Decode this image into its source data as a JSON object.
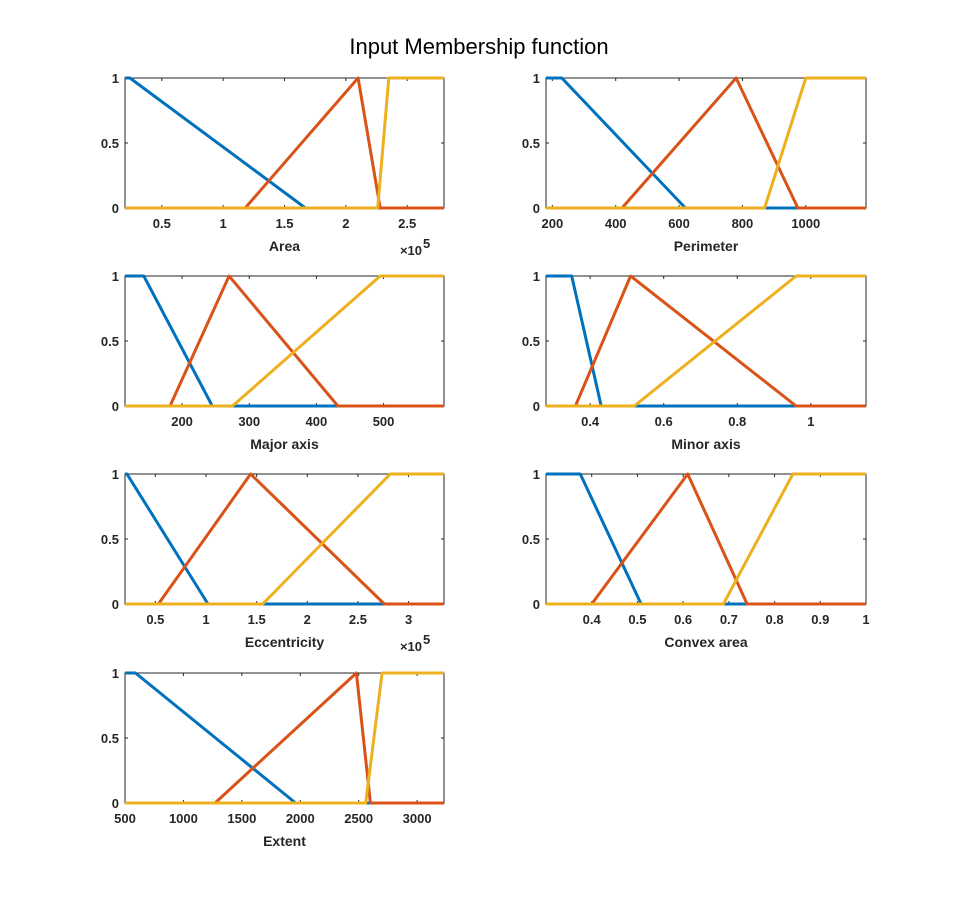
{
  "figure_title": "Input Membership function",
  "colors": {
    "mf1": "#0072BD",
    "mf2": "#D95319",
    "mf3": "#EDB120"
  },
  "chart_data": [
    {
      "type": "line",
      "xlabel": "Area",
      "multiplier": "×10",
      "multiplier_exp": "5",
      "xlim": [
        0.2,
        2.8
      ],
      "ylim": [
        0,
        1
      ],
      "xticks": [
        0.5,
        1,
        1.5,
        2,
        2.5
      ],
      "xtick_labels": [
        "0.5",
        "1",
        "1.5",
        "2",
        "2.5"
      ],
      "yticks": [
        0,
        0.5,
        1
      ],
      "ytick_labels": [
        "0",
        "0.5",
        "1"
      ],
      "series": [
        {
          "x": [
            0.2,
            0.24,
            1.67,
            2.8
          ],
          "y": [
            1,
            1,
            0,
            0
          ]
        },
        {
          "x": [
            0.2,
            1.18,
            2.1,
            2.28,
            2.8
          ],
          "y": [
            0,
            0,
            1,
            0,
            0
          ]
        },
        {
          "x": [
            0.2,
            2.26,
            2.35,
            2.8
          ],
          "y": [
            0,
            0,
            1,
            1
          ]
        }
      ]
    },
    {
      "type": "line",
      "xlabel": "Perimeter",
      "multiplier": "",
      "multiplier_exp": "",
      "xlim": [
        180,
        1190
      ],
      "ylim": [
        0,
        1
      ],
      "xticks": [
        200,
        400,
        600,
        800,
        1000
      ],
      "xtick_labels": [
        "200",
        "400",
        "600",
        "800",
        "1000"
      ],
      "yticks": [
        0,
        0.5,
        1
      ],
      "ytick_labels": [
        "0",
        "0.5",
        "1"
      ],
      "series": [
        {
          "x": [
            180,
            230,
            620,
            1190
          ],
          "y": [
            1,
            1,
            0,
            0
          ]
        },
        {
          "x": [
            180,
            420,
            780,
            975,
            1190
          ],
          "y": [
            0,
            0,
            1,
            0,
            0
          ]
        },
        {
          "x": [
            180,
            870,
            1000,
            1190
          ],
          "y": [
            0,
            0,
            1,
            1
          ]
        }
      ]
    },
    {
      "type": "line",
      "xlabel": "Major axis",
      "multiplier": "",
      "multiplier_exp": "",
      "xlim": [
        115,
        590
      ],
      "ylim": [
        0,
        1
      ],
      "xticks": [
        200,
        300,
        400,
        500
      ],
      "xtick_labels": [
        "200",
        "300",
        "400",
        "500"
      ],
      "yticks": [
        0,
        0.5,
        1
      ],
      "ytick_labels": [
        "0",
        "0.5",
        "1"
      ],
      "series": [
        {
          "x": [
            115,
            143,
            245,
            590
          ],
          "y": [
            1,
            1,
            0,
            0
          ]
        },
        {
          "x": [
            115,
            182,
            270,
            432,
            590
          ],
          "y": [
            0,
            0,
            1,
            0,
            0
          ]
        },
        {
          "x": [
            115,
            275,
            495,
            590
          ],
          "y": [
            0,
            0,
            1,
            1
          ]
        }
      ]
    },
    {
      "type": "line",
      "xlabel": "Minor axis",
      "multiplier": "",
      "multiplier_exp": "",
      "xlim": [
        0.28,
        1.15
      ],
      "ylim": [
        0,
        1
      ],
      "xticks": [
        0.4,
        0.6,
        0.8,
        1
      ],
      "xtick_labels": [
        "0.4",
        "0.6",
        "0.8",
        "1"
      ],
      "yticks": [
        0,
        0.5,
        1
      ],
      "ytick_labels": [
        "0",
        "0.5",
        "1"
      ],
      "series": [
        {
          "x": [
            0.28,
            0.35,
            0.43,
            1.15
          ],
          "y": [
            1,
            1,
            0,
            0
          ]
        },
        {
          "x": [
            0.28,
            0.36,
            0.51,
            0.96,
            1.15
          ],
          "y": [
            0,
            0,
            1,
            0,
            0
          ]
        },
        {
          "x": [
            0.28,
            0.52,
            0.96,
            1.15
          ],
          "y": [
            0,
            0,
            1,
            1
          ]
        }
      ]
    },
    {
      "type": "line",
      "xlabel": "Eccentricity",
      "multiplier": "×10",
      "multiplier_exp": "5",
      "xlim": [
        0.2,
        3.35
      ],
      "ylim": [
        0,
        1
      ],
      "xticks": [
        0.5,
        1,
        1.5,
        2,
        2.5,
        3
      ],
      "xtick_labels": [
        "0.5",
        "1",
        "1.5",
        "2",
        "2.5",
        "3"
      ],
      "yticks": [
        0,
        0.5,
        1
      ],
      "ytick_labels": [
        "0",
        "0.5",
        "1"
      ],
      "series": [
        {
          "x": [
            0.2,
            0.22,
            1.02,
            3.35
          ],
          "y": [
            1,
            1,
            0,
            0
          ]
        },
        {
          "x": [
            0.2,
            0.53,
            1.44,
            2.76,
            3.35
          ],
          "y": [
            0,
            0,
            1,
            0,
            0
          ]
        },
        {
          "x": [
            0.2,
            1.56,
            2.82,
            3.35
          ],
          "y": [
            0,
            0,
            1,
            1
          ]
        }
      ]
    },
    {
      "type": "line",
      "xlabel": "Convex area",
      "multiplier": "",
      "multiplier_exp": "",
      "xlim": [
        0.3,
        1.0
      ],
      "ylim": [
        0,
        1
      ],
      "xticks": [
        0.4,
        0.5,
        0.6,
        0.7,
        0.8,
        0.9,
        1
      ],
      "xtick_labels": [
        "0.4",
        "0.5",
        "0.6",
        "0.7",
        "0.8",
        "0.9",
        "1"
      ],
      "yticks": [
        0,
        0.5,
        1
      ],
      "ytick_labels": [
        "0",
        "0.5",
        "1"
      ],
      "series": [
        {
          "x": [
            0.3,
            0.375,
            0.508,
            1.0
          ],
          "y": [
            1,
            1,
            0,
            0
          ]
        },
        {
          "x": [
            0.3,
            0.4,
            0.61,
            0.74,
            1.0
          ],
          "y": [
            0,
            0,
            1,
            0,
            0
          ]
        },
        {
          "x": [
            0.3,
            0.688,
            0.84,
            1.0
          ],
          "y": [
            0,
            0,
            1,
            1
          ]
        }
      ]
    },
    {
      "type": "line",
      "xlabel": "Extent",
      "multiplier": "",
      "multiplier_exp": "",
      "xlim": [
        500,
        3230
      ],
      "ylim": [
        0,
        1
      ],
      "xticks": [
        500,
        1000,
        1500,
        2000,
        2500,
        3000
      ],
      "xtick_labels": [
        "500",
        "1000",
        "1500",
        "2000",
        "2500",
        "3000"
      ],
      "yticks": [
        0,
        0.5,
        1
      ],
      "ytick_labels": [
        "0",
        "0.5",
        "1"
      ],
      "series": [
        {
          "x": [
            500,
            590,
            1960,
            3230
          ],
          "y": [
            1,
            1,
            0,
            0
          ]
        },
        {
          "x": [
            500,
            1270,
            2480,
            2600,
            3230
          ],
          "y": [
            0,
            0,
            1,
            0,
            0
          ]
        },
        {
          "x": [
            500,
            2560,
            2700,
            3230
          ],
          "y": [
            0,
            0,
            1,
            1
          ]
        }
      ]
    }
  ]
}
